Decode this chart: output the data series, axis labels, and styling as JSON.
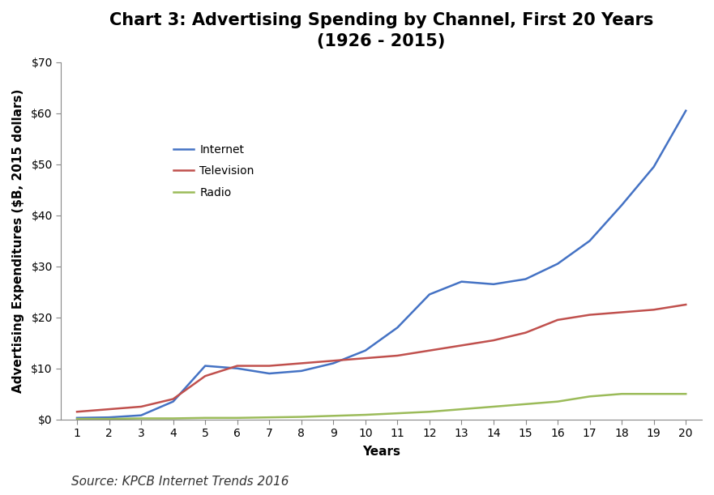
{
  "title_line1": "Chart 3: Advertising Spending by Channel, First 20 Years",
  "title_line2": "(1926 - 2015)",
  "xlabel": "Years",
  "ylabel": "Advertising Expenditures ($B, 2015 dollars)",
  "source": "Source: KPCB Internet Trends 2016",
  "ylim": [
    0,
    70
  ],
  "xlim_min": 0.5,
  "xlim_max": 20.5,
  "yticks": [
    0,
    10,
    20,
    30,
    40,
    50,
    60,
    70
  ],
  "xticks": [
    1,
    2,
    3,
    4,
    5,
    6,
    7,
    8,
    9,
    10,
    11,
    12,
    13,
    14,
    15,
    16,
    17,
    18,
    19,
    20
  ],
  "series": {
    "Internet": {
      "color": "#4472C4",
      "values": [
        0.3,
        0.4,
        0.8,
        3.5,
        10.5,
        10.0,
        9.0,
        9.5,
        11.0,
        13.5,
        18.0,
        24.5,
        27.0,
        26.5,
        27.5,
        30.5,
        35.0,
        42.0,
        49.5,
        60.5
      ]
    },
    "Television": {
      "color": "#C0504D",
      "values": [
        1.5,
        2.0,
        2.5,
        4.0,
        8.5,
        10.5,
        10.5,
        11.0,
        11.5,
        12.0,
        12.5,
        13.5,
        14.5,
        15.5,
        17.0,
        19.5,
        20.5,
        21.0,
        21.5,
        22.5
      ]
    },
    "Radio": {
      "color": "#9BBB59",
      "values": [
        0.1,
        0.1,
        0.2,
        0.2,
        0.3,
        0.3,
        0.4,
        0.5,
        0.7,
        0.9,
        1.2,
        1.5,
        2.0,
        2.5,
        3.0,
        3.5,
        4.5,
        5.0,
        5.0,
        5.0
      ]
    }
  },
  "background_color": "#FFFFFF",
  "title_fontsize": 15,
  "axis_label_fontsize": 11,
  "tick_fontsize": 10,
  "legend_fontsize": 10,
  "source_fontsize": 11,
  "line_width": 1.8
}
